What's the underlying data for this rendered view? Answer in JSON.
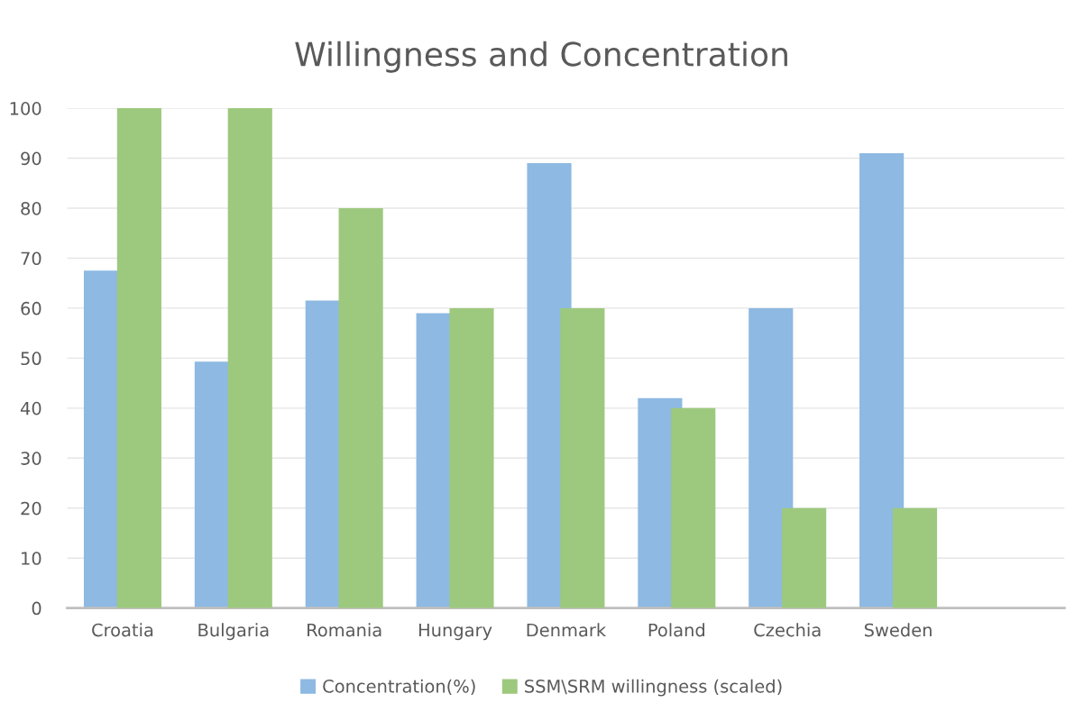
{
  "chart_data": {
    "type": "bar",
    "title": "Willingness and Concentration",
    "categories": [
      "Croatia",
      "Bulgaria",
      "Romania",
      "Hungary",
      "Denmark",
      "Poland",
      "Czechia",
      "Sweden",
      null
    ],
    "series": [
      {
        "name": "Concentration(%)",
        "color": "#8db9e2",
        "values": [
          67.5,
          49.3,
          61.5,
          59,
          89,
          42,
          60,
          91,
          null
        ]
      },
      {
        "name": "SSM\\SRM willingness (scaled)",
        "color": "#9dc97e",
        "values": [
          100,
          100,
          80,
          60,
          60,
          40,
          20,
          20,
          null
        ]
      }
    ],
    "ylim": [
      0,
      100
    ],
    "yticks": [
      0,
      10,
      20,
      30,
      40,
      50,
      60,
      70,
      80,
      90,
      100
    ],
    "grid": "y",
    "legend": "bottom"
  }
}
